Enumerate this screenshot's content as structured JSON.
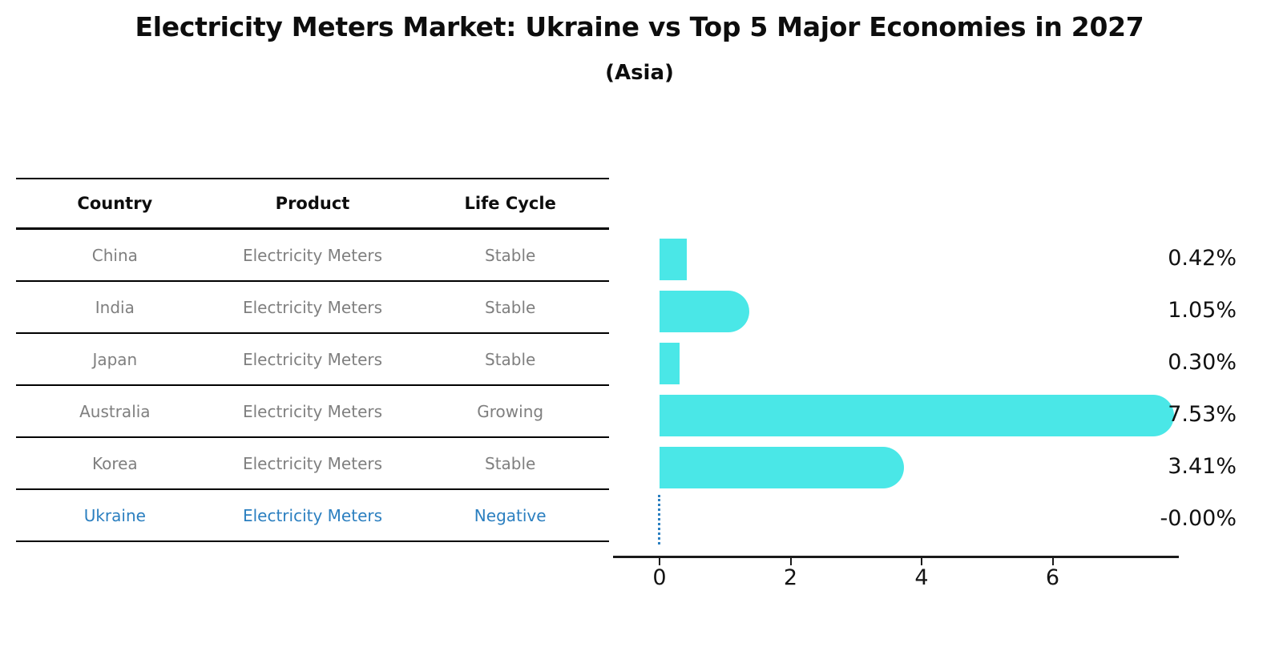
{
  "header": {
    "title": "Electricity Meters Market: Ukraine vs Top 5 Major Economies in 2027",
    "subtitle": "(Asia)"
  },
  "table": {
    "columns": [
      "Country",
      "Product",
      "Life Cycle"
    ],
    "rows": [
      {
        "country": "China",
        "product": "Electricity Meters",
        "life_cycle": "Stable",
        "highlight": false
      },
      {
        "country": "India",
        "product": "Electricity Meters",
        "life_cycle": "Stable",
        "highlight": false
      },
      {
        "country": "Japan",
        "product": "Electricity Meters",
        "life_cycle": "Stable",
        "highlight": false
      },
      {
        "country": "Australia",
        "product": "Electricity Meters",
        "life_cycle": "Growing",
        "highlight": false
      },
      {
        "country": "Korea",
        "product": "Electricity Meters",
        "life_cycle": "Stable",
        "highlight": false
      },
      {
        "country": "Ukraine",
        "product": "Electricity Meters",
        "life_cycle": "Negative",
        "highlight": true
      }
    ]
  },
  "chart_data": {
    "type": "bar",
    "orientation": "horizontal",
    "title": "Electricity Meters Market: Ukraine vs Top 5 Major Economies in 2027",
    "subtitle": "(Asia)",
    "categories": [
      "China",
      "India",
      "Japan",
      "Australia",
      "Korea",
      "Ukraine"
    ],
    "values": [
      0.42,
      1.05,
      0.3,
      7.53,
      3.41,
      -0.0
    ],
    "value_labels": [
      "0.42%",
      "1.05%",
      "0.30%",
      "7.53%",
      "3.41%",
      "-0.00%"
    ],
    "x_ticks": [
      0,
      2,
      4,
      6
    ],
    "x_tick_labels": [
      "0",
      "2",
      "4",
      "6"
    ],
    "xlim": [
      -0.7,
      7.9
    ],
    "grid": "off",
    "legend": "none",
    "bar_color": "#4ae7e7",
    "highlight_color": "#2b7fc0",
    "ukraine_marker": "dotted zero line"
  }
}
